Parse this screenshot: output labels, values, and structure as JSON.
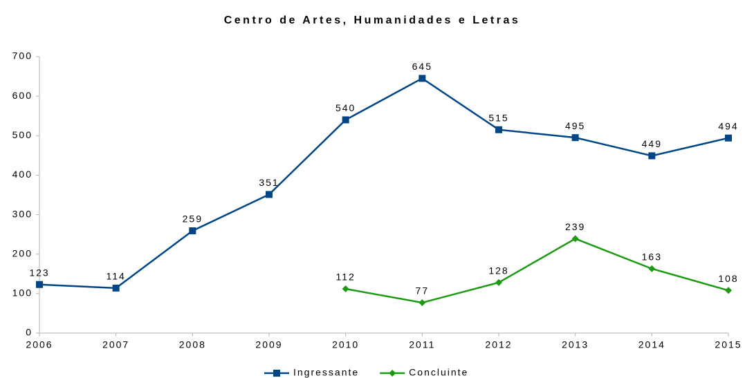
{
  "chart_data": {
    "type": "line",
    "title": "Centro de Artes, Humanidades e Letras",
    "x": [
      2006,
      2007,
      2008,
      2009,
      2010,
      2011,
      2012,
      2013,
      2014,
      2015
    ],
    "series": [
      {
        "name": "Ingressante",
        "color": "#004586",
        "marker": "square",
        "values": [
          123,
          114,
          259,
          351,
          540,
          645,
          515,
          495,
          449,
          494
        ]
      },
      {
        "name": "Concluinte",
        "color": "#1c9a12",
        "marker": "diamond",
        "values": [
          null,
          null,
          null,
          null,
          112,
          77,
          128,
          239,
          163,
          108
        ]
      }
    ],
    "xlim": [
      2006,
      2015
    ],
    "xticks": [
      2006,
      2007,
      2008,
      2009,
      2010,
      2011,
      2012,
      2013,
      2014,
      2015
    ],
    "ylim": [
      0,
      700
    ],
    "yticks": [
      0,
      100,
      200,
      300,
      400,
      500,
      600,
      700
    ],
    "grid": false,
    "legend": "bottom"
  }
}
